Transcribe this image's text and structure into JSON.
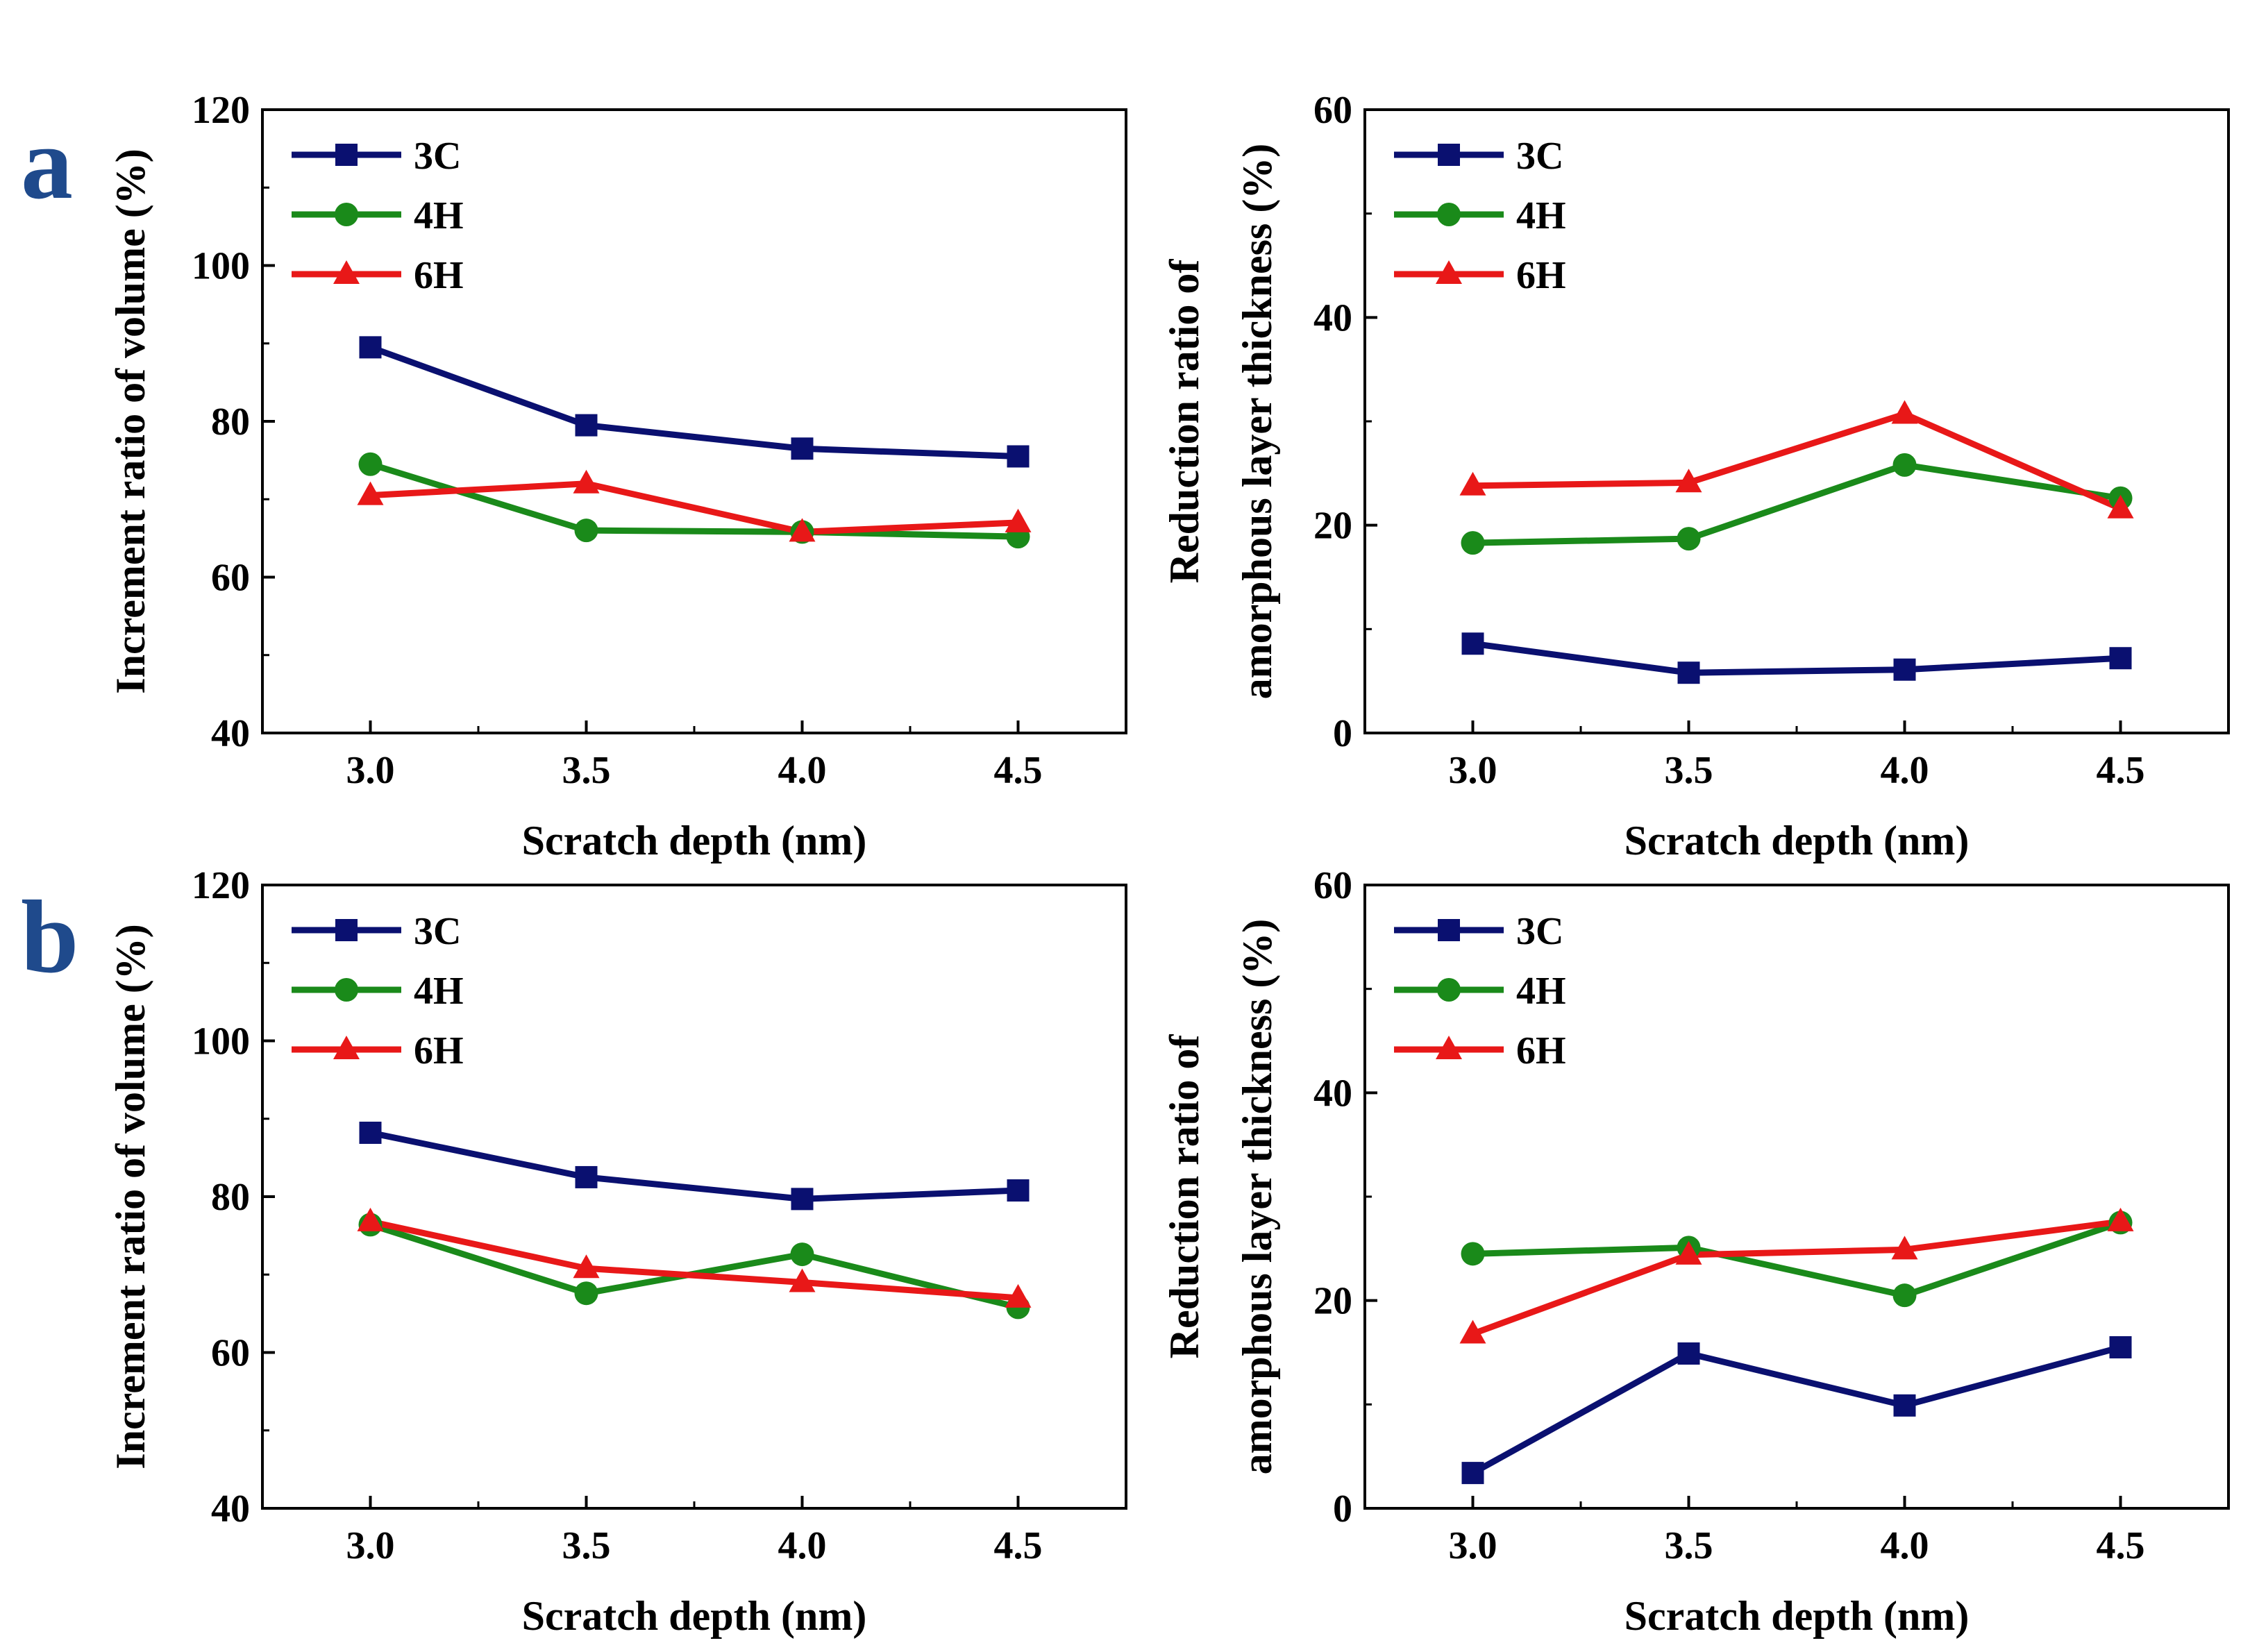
{
  "colors": {
    "3C": "#0a1070",
    "4H": "#1a8a1a",
    "6H": "#e81818",
    "panel_letter": "#1f4a8c"
  },
  "panel_labels": [
    "a",
    "b"
  ],
  "chart_data": [
    {
      "id": "a-left",
      "type": "line",
      "x": [
        3.0,
        3.5,
        4.0,
        4.5
      ],
      "xlim": [
        2.75,
        4.75
      ],
      "ylim": [
        40,
        120
      ],
      "xticks": [
        "3.0",
        "3.5",
        "4.0",
        "4.5"
      ],
      "yticks": [
        "40",
        "60",
        "80",
        "100",
        "120"
      ],
      "xlabel": "Scratch depth (nm)",
      "ylabel": [
        "Increment ratio of volume (%)"
      ],
      "legend_position": "top-left",
      "series": [
        {
          "name": "3C",
          "marker": "square",
          "values": [
            89.5,
            79.5,
            76.5,
            75.5
          ]
        },
        {
          "name": "4H",
          "marker": "circle",
          "values": [
            74.5,
            66.0,
            65.8,
            65.2
          ]
        },
        {
          "name": "6H",
          "marker": "triangle",
          "values": [
            70.5,
            72.0,
            65.8,
            67.0
          ]
        }
      ]
    },
    {
      "id": "a-right",
      "type": "line",
      "x": [
        3.0,
        3.5,
        4.0,
        4.5
      ],
      "xlim": [
        2.75,
        4.75
      ],
      "ylim": [
        0,
        60
      ],
      "xticks": [
        "3.0",
        "3.5",
        "4.0",
        "4.5"
      ],
      "yticks": [
        "0",
        "20",
        "40",
        "60"
      ],
      "xlabel": "Scratch depth (nm)",
      "ylabel": [
        "Reduction ratio of",
        "amorphous layer thickness (%)"
      ],
      "legend_position": "top-left",
      "series": [
        {
          "name": "3C",
          "marker": "square",
          "values": [
            8.6,
            5.8,
            6.1,
            7.2
          ]
        },
        {
          "name": "4H",
          "marker": "circle",
          "values": [
            18.3,
            18.7,
            25.8,
            22.6
          ]
        },
        {
          "name": "6H",
          "marker": "triangle",
          "values": [
            23.8,
            24.1,
            30.7,
            21.6
          ]
        }
      ]
    },
    {
      "id": "b-left",
      "type": "line",
      "x": [
        3.0,
        3.5,
        4.0,
        4.5
      ],
      "xlim": [
        2.75,
        4.75
      ],
      "ylim": [
        40,
        120
      ],
      "xticks": [
        "3.0",
        "3.5",
        "4.0",
        "4.5"
      ],
      "yticks": [
        "40",
        "60",
        "80",
        "100",
        "120"
      ],
      "xlabel": "Scratch depth (nm)",
      "ylabel": [
        "Increment ratio of volume (%)"
      ],
      "legend_position": "top-left",
      "series": [
        {
          "name": "3C",
          "marker": "square",
          "values": [
            88.2,
            82.5,
            79.7,
            80.8
          ]
        },
        {
          "name": "4H",
          "marker": "circle",
          "values": [
            76.4,
            67.6,
            72.6,
            65.8
          ]
        },
        {
          "name": "6H",
          "marker": "triangle",
          "values": [
            76.8,
            70.8,
            69.0,
            67.0
          ]
        }
      ]
    },
    {
      "id": "b-right",
      "type": "line",
      "x": [
        3.0,
        3.5,
        4.0,
        4.5
      ],
      "xlim": [
        2.75,
        4.75
      ],
      "ylim": [
        0,
        60
      ],
      "xticks": [
        "3.0",
        "3.5",
        "4.0",
        "4.5"
      ],
      "yticks": [
        "0",
        "20",
        "40",
        "60"
      ],
      "xlabel": "Scratch depth (nm)",
      "ylabel": [
        "Reduction ratio of",
        "amorphous layer thickness (%)"
      ],
      "legend_position": "top-left",
      "series": [
        {
          "name": "3C",
          "marker": "square",
          "values": [
            3.4,
            14.9,
            9.9,
            15.5
          ]
        },
        {
          "name": "4H",
          "marker": "circle",
          "values": [
            24.5,
            25.1,
            20.5,
            27.5
          ]
        },
        {
          "name": "6H",
          "marker": "triangle",
          "values": [
            16.8,
            24.4,
            24.9,
            27.6
          ]
        }
      ]
    }
  ]
}
